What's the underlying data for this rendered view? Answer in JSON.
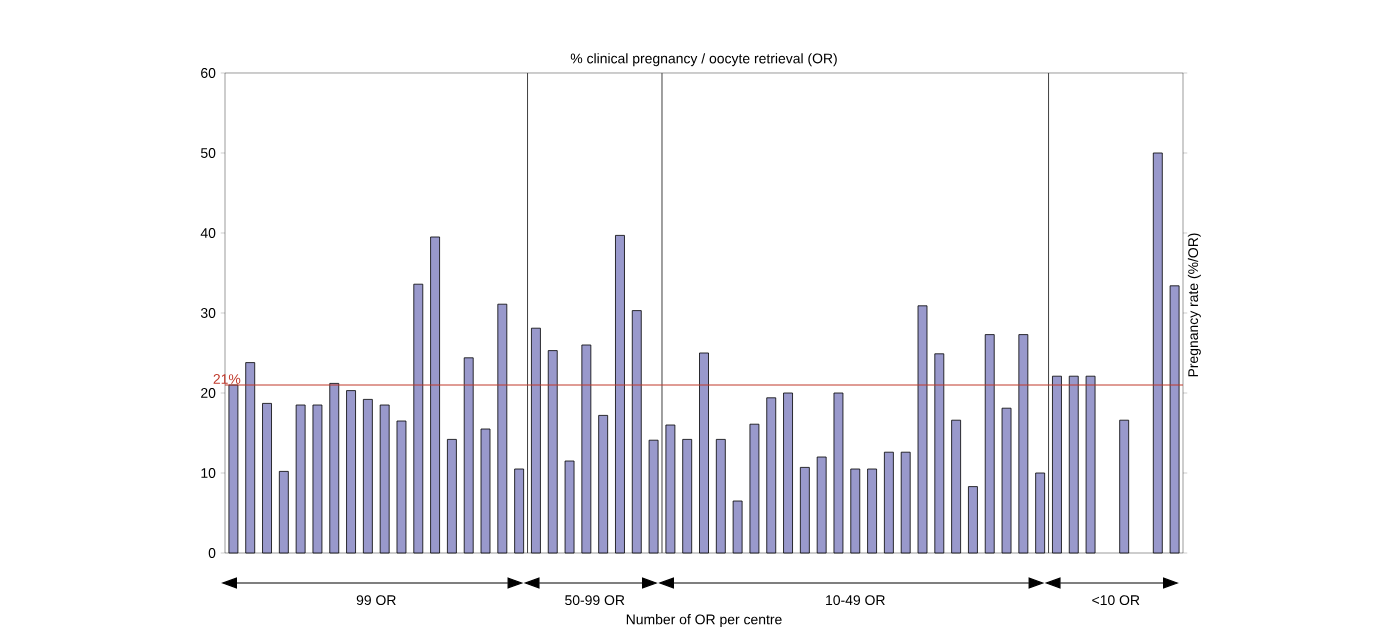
{
  "chart_data": {
    "type": "bar",
    "title": "% clinical pregnancy / oocyte retrieval (OR)",
    "xlabel": "Number of OR per centre",
    "ylabel": "Pregnancy rate (%/OR)",
    "categories": [
      null,
      null,
      null,
      null,
      null,
      null,
      null,
      null,
      null,
      null,
      null,
      null,
      null,
      null,
      null,
      null,
      null,
      null,
      null,
      null,
      null,
      null,
      null,
      null,
      null,
      null,
      null,
      null,
      null,
      null,
      null,
      null,
      null,
      null,
      null,
      null,
      null,
      null,
      null,
      null,
      null,
      null,
      null,
      null,
      null,
      null,
      null,
      null,
      null,
      null,
      null,
      null,
      null,
      null,
      null,
      null,
      null
    ],
    "values": [
      21,
      23.8,
      18.7,
      10.2,
      18.5,
      18.5,
      21.2,
      20.3,
      19.2,
      18.5,
      16.5,
      33.6,
      39.5,
      14.2,
      24.4,
      15.5,
      31.1,
      10.5,
      28.1,
      25.3,
      11.5,
      26,
      17.2,
      39.7,
      30.3,
      14.1,
      16,
      14.2,
      25,
      14.2,
      6.5,
      16.1,
      19.4,
      20,
      10.7,
      12,
      20,
      10.5,
      10.5,
      12.6,
      12.6,
      30.9,
      24.9,
      16.6,
      8.3,
      27.3,
      18.1,
      27.3,
      10,
      22.1,
      22.1,
      22.1,
      null,
      16.6,
      null,
      50,
      33.4
    ],
    "color": "#9999cc",
    "ylim": [
      0,
      60
    ],
    "yticks": [
      0,
      10,
      20,
      30,
      40,
      50,
      60
    ],
    "ref_lines": [
      {
        "axis": "y",
        "value": 21,
        "label": "21%",
        "color": "#c0392b"
      }
    ],
    "annotations": [
      "99 OR",
      "50-99 OR",
      "10-49 OR",
      "<10 OR"
    ]
  }
}
